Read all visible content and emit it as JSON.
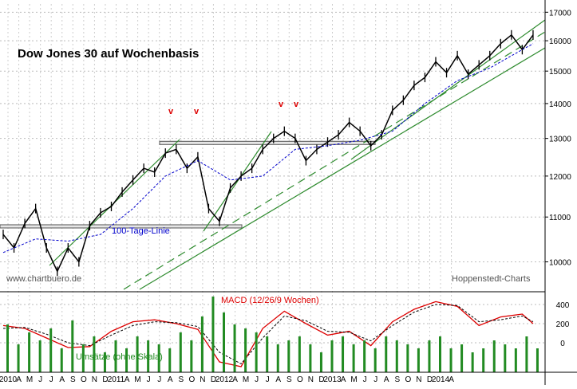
{
  "chart_data": [
    {
      "type": "line",
      "panel": "price",
      "title": "Dow Jones 30 auf Wochenbasis",
      "series": [
        {
          "role": "price-weekly",
          "color": "#000000",
          "x": [
            "2010-01",
            "2010-02",
            "2010-03",
            "2010-04",
            "2010-05",
            "2010-06",
            "2010-07",
            "2010-08",
            "2010-09",
            "2010-10",
            "2010-11",
            "2010-12",
            "2011-01",
            "2011-02",
            "2011-03",
            "2011-04",
            "2011-05",
            "2011-06",
            "2011-07",
            "2011-08",
            "2011-09",
            "2011-10",
            "2011-11",
            "2011-12",
            "2012-01",
            "2012-02",
            "2012-03",
            "2012-04",
            "2012-05",
            "2012-06",
            "2012-07",
            "2012-08",
            "2012-09",
            "2012-10",
            "2012-11",
            "2012-12",
            "2013-01",
            "2013-02",
            "2013-03",
            "2013-04",
            "2013-05",
            "2013-06",
            "2013-07",
            "2013-08",
            "2013-09",
            "2013-10",
            "2013-11",
            "2013-12",
            "2014-01",
            "2014-02"
          ],
          "values": [
            10600,
            10300,
            10850,
            11200,
            10300,
            9800,
            10300,
            10000,
            10800,
            11100,
            11250,
            11600,
            11900,
            12200,
            12100,
            12600,
            12700,
            12200,
            12500,
            11200,
            10900,
            11700,
            12000,
            12200,
            12700,
            13000,
            13200,
            13000,
            12400,
            12700,
            12900,
            13100,
            13450,
            13200,
            12800,
            13100,
            13800,
            14100,
            14550,
            14800,
            15300,
            14950,
            15500,
            14900,
            15200,
            15500,
            15900,
            16200,
            15700,
            16200
          ]
        },
        {
          "role": "moving-average-100",
          "color": "#0000cc",
          "dashed": true,
          "x": [
            "2010-01",
            "2010-04",
            "2010-07",
            "2010-10",
            "2011-01",
            "2011-04",
            "2011-07",
            "2011-10",
            "2012-01",
            "2012-04",
            "2012-07",
            "2012-10",
            "2013-01",
            "2013-04",
            "2013-07",
            "2013-10",
            "2014-01",
            "2014-02"
          ],
          "values": [
            10200,
            10500,
            10450,
            10600,
            11200,
            12000,
            12400,
            11900,
            12000,
            12700,
            12800,
            12950,
            13200,
            14000,
            14700,
            15100,
            15700,
            15900
          ]
        }
      ],
      "support_zones": [
        {
          "from_value": 10750,
          "to_value": 10820
        },
        {
          "from_value": 12850,
          "to_value": 12920
        }
      ],
      "markers": [
        "v",
        "v",
        "v",
        "v"
      ],
      "annotations": [
        "100-Tage-Linie",
        "www.chartbuero.de",
        "Hoppenstedt-Charts"
      ],
      "yticks": [
        10000,
        11000,
        12000,
        13000,
        14000,
        15000,
        16000,
        17000
      ],
      "ylim": [
        9400,
        17300
      ],
      "yscale": "log",
      "grid": true
    },
    {
      "type": "line",
      "panel": "indicator",
      "title": "MACD (12/26/9 Wochen)",
      "series": [
        {
          "role": "macd",
          "color": "#dd0000",
          "x": [
            "2010-01",
            "2010-03",
            "2010-05",
            "2010-07",
            "2010-09",
            "2010-11",
            "2011-01",
            "2011-03",
            "2011-05",
            "2011-07",
            "2011-09",
            "2011-11",
            "2012-01",
            "2012-03",
            "2012-05",
            "2012-07",
            "2012-09",
            "2012-11",
            "2013-01",
            "2013-03",
            "2013-05",
            "2013-07",
            "2013-09",
            "2013-11",
            "2014-01",
            "2014-02"
          ],
          "values": [
            180,
            150,
            50,
            -50,
            -40,
            120,
            220,
            240,
            200,
            140,
            -200,
            -250,
            150,
            330,
            200,
            80,
            120,
            -30,
            220,
            350,
            430,
            380,
            180,
            270,
            300,
            200
          ]
        },
        {
          "role": "signal",
          "color": "#000000",
          "dashed": true,
          "x": [
            "2010-01",
            "2010-03",
            "2010-05",
            "2010-07",
            "2010-09",
            "2010-11",
            "2011-01",
            "2011-03",
            "2011-05",
            "2011-07",
            "2011-09",
            "2011-11",
            "2012-01",
            "2012-03",
            "2012-05",
            "2012-07",
            "2012-09",
            "2012-11",
            "2013-01",
            "2013-03",
            "2013-05",
            "2013-07",
            "2013-09",
            "2013-11",
            "2014-01",
            "2014-02"
          ],
          "values": [
            150,
            160,
            90,
            0,
            -30,
            80,
            180,
            220,
            210,
            170,
            -100,
            -220,
            50,
            280,
            230,
            120,
            110,
            20,
            180,
            320,
            400,
            390,
            220,
            240,
            280,
            220
          ]
        }
      ],
      "yticks": [
        0,
        200,
        400
      ],
      "volume": {
        "label": "Umsätze (ohne Skala)",
        "color": "#228b22",
        "values": [
          60,
          35,
          50,
          40,
          55,
          30,
          65,
          35,
          45,
          25,
          40,
          30,
          45,
          40,
          35,
          30,
          50,
          40,
          70,
          95,
          75,
          60,
          55,
          50,
          45,
          35,
          40,
          45,
          35,
          25,
          40,
          45,
          35,
          40,
          30,
          45,
          40,
          35,
          30,
          40,
          45,
          30,
          35,
          25,
          30,
          40,
          35,
          30,
          45,
          30
        ]
      },
      "x_labels": [
        "2010",
        "A",
        "M",
        "J",
        "J",
        "A",
        "S",
        "O",
        "N",
        "D",
        "2011",
        "A",
        "M",
        "J",
        "J",
        "A",
        "S",
        "O",
        "N",
        "D",
        "2012",
        "A",
        "M",
        "J",
        "J",
        "A",
        "S",
        "O",
        "N",
        "D",
        "2013",
        "A",
        "M",
        "J",
        "J",
        "A",
        "S",
        "O",
        "N",
        "D",
        "2014",
        "A"
      ]
    }
  ]
}
